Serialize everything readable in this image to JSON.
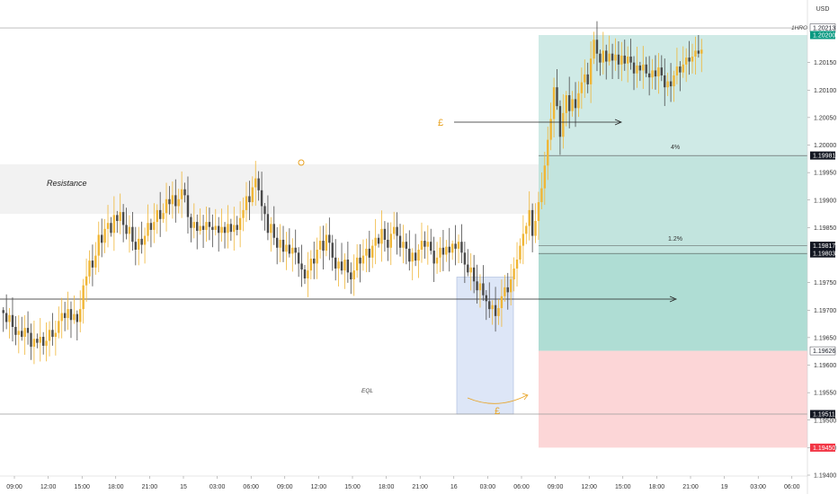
{
  "chart_data": {
    "type": "candlestick",
    "currency": "USD",
    "y_range": [
      1.19415,
      1.20233
    ],
    "y_ticks": [
      "1.20150",
      "1.20100",
      "1.20050",
      "1.20000",
      "1.19950",
      "1.19900",
      "1.19850",
      "1.19750",
      "1.19700",
      "1.19650",
      "1.19600",
      "1.19550",
      "1.19500",
      "1.19450",
      "1.19400"
    ],
    "x_ticks": [
      "09:00",
      "12:00",
      "15:00",
      "18:00",
      "21:00",
      "15",
      "03:00",
      "06:00",
      "09:00",
      "12:00",
      "15:00",
      "18:00",
      "21:00",
      "16",
      "03:00",
      "06:00",
      "09:00",
      "12:00",
      "15:00",
      "18:00",
      "21:00",
      "19",
      "03:00",
      "06:00"
    ],
    "price_badges": [
      {
        "text": "1.20213",
        "bg": "#ffffff",
        "color": "#131722",
        "value": 1.20213
      },
      {
        "text": "1.20200",
        "bg": "#089981",
        "color": "#ffffff",
        "value": 1.202
      },
      {
        "text": "1.19981",
        "bg": "#131722",
        "color": "#ffffff",
        "value": 1.19981
      },
      {
        "text": "1.19817",
        "bg": "#131722",
        "color": "#ffffff",
        "value": 1.19817
      },
      {
        "text": "1.19803",
        "bg": "#131722",
        "color": "#ffffff",
        "value": 1.19803
      },
      {
        "text": "1.19626",
        "bg": "#ffffff",
        "color": "#131722",
        "value": 1.19626
      },
      {
        "text": "1.19511",
        "bg": "#131722",
        "color": "#ffffff",
        "value": 1.19511
      },
      {
        "text": "1.19450",
        "bg": "#f23645",
        "color": "#ffffff",
        "value": 1.1945
      }
    ],
    "annotations": {
      "htf_label": "1HROB",
      "resistance_label": "Resistance",
      "eql_label": "EQL",
      "pound_top": "£",
      "pound_bottom": "£",
      "target_pct": "4%",
      "current_pct": "1.2%",
      "circle_mark": "●"
    },
    "zones": {
      "resistance": [
        1.19875,
        1.19965
      ],
      "take_profit": [
        1.19626,
        1.202
      ],
      "stop_loss": [
        1.1945,
        1.19626
      ],
      "blue_box": [
        1.19511,
        1.1976
      ]
    },
    "levels": {
      "htf": 1.20213,
      "target": 1.19981,
      "mid": 1.1972,
      "eql": 1.19511
    },
    "candles_start_price": 1.197,
    "candle_moves": [
      -0.3,
      -0.9,
      0.7,
      -1.2,
      -0.8,
      0.4,
      -0.6,
      0.9,
      -0.5,
      -1.4,
      0.8,
      -0.4,
      0.6,
      -0.9,
      0.5,
      1.1,
      -0.7,
      0.4,
      1.2,
      0.8,
      -0.5,
      0.9,
      -1.1,
      0.6,
      -0.8,
      1.3,
      2.4,
      0.9,
      1.6,
      -0.7,
      1.2,
      2.1,
      -0.8,
      1.4,
      0.6,
      -1.0,
      1.8,
      -0.6,
      0.9,
      -1.3,
      -0.9,
      0.7,
      -1.5,
      -0.8,
      1.1,
      -0.6,
      0.9,
      1.3,
      -0.7,
      0.8,
      1.2,
      -0.9,
      0.6,
      1.4,
      -0.5,
      0.9,
      -1.1,
      0.7,
      1.0,
      -0.6,
      -2.2,
      -1.1,
      0.6,
      -0.9,
      0.5,
      -0.4,
      0.8,
      -0.5,
      -0.3,
      0.4,
      -0.7,
      0.6,
      -0.6,
      0.9,
      -0.8,
      0.7,
      -0.5,
      1.2,
      0.8,
      1.4,
      -0.6,
      1.5,
      0.9,
      -1.2,
      -1.6,
      -0.8,
      -1.9,
      0.9,
      -1.4,
      -1.0,
      0.8,
      -1.2,
      0.7,
      -0.9,
      0.6,
      -0.5,
      -1.1,
      -0.6,
      -0.9,
      0.8,
      1.2,
      -0.5,
      1.4,
      0.9,
      -1.0,
      1.6,
      -0.8,
      -1.5,
      -1.1,
      0.7,
      -0.9,
      1.1,
      -1.3,
      -0.7,
      0.9,
      1.3,
      -0.6,
      0.8,
      0.7,
      -0.9,
      1.2,
      0.8,
      -0.6,
      1.5,
      -1.1,
      -0.8,
      1.4,
      0.7,
      -0.9,
      -1.2,
      0.6,
      -0.7,
      -1.3,
      0.9,
      -0.8,
      1.1,
      0.9,
      -0.6,
      0.5,
      -0.9,
      -1.3,
      0.6,
      1.0,
      -0.7,
      0.8,
      -0.6,
      0.9,
      -0.5,
      0.7,
      -1.1,
      -1.2,
      -0.8,
      0.5,
      -1.4,
      -0.9,
      0.7,
      -1.2,
      -0.6,
      -0.8,
      0.4,
      -1.1,
      0.8,
      1.2,
      0.9,
      -0.5,
      1.3,
      1.1,
      0.9,
      1.4,
      1.2,
      0.8,
      1.6,
      -2.6,
      1.5,
      1.9,
      1.4,
      2.3,
      2.6,
      2.1,
      3.2,
      -1.9,
      -3.1,
      2.4,
      1.8,
      -1.6,
      1.2,
      -0.9,
      1.5,
      1.1,
      0.8,
      -1.0,
      2.6,
      1.9,
      -1.4,
      -0.9,
      1.2,
      -1.1,
      0.8,
      -0.7,
      0.6,
      -1.0,
      0.9,
      -0.8,
      0.7,
      -0.6,
      -1.1,
      0.8,
      -0.5,
      0.6,
      -0.9,
      -0.4,
      0.7,
      -0.6,
      0.9,
      -0.8,
      -1.2,
      0.6,
      -0.5,
      1.1,
      0.9,
      -0.6,
      0.8,
      0.7,
      -0.4,
      0.5,
      0.6,
      -0.3,
      0.4
    ],
    "candle_count": 228,
    "up_color": "#f0b636",
    "down_color": "#4a4a4a",
    "target_annotation_xy_note": "measurement tool box from session 18:00 onwards"
  }
}
